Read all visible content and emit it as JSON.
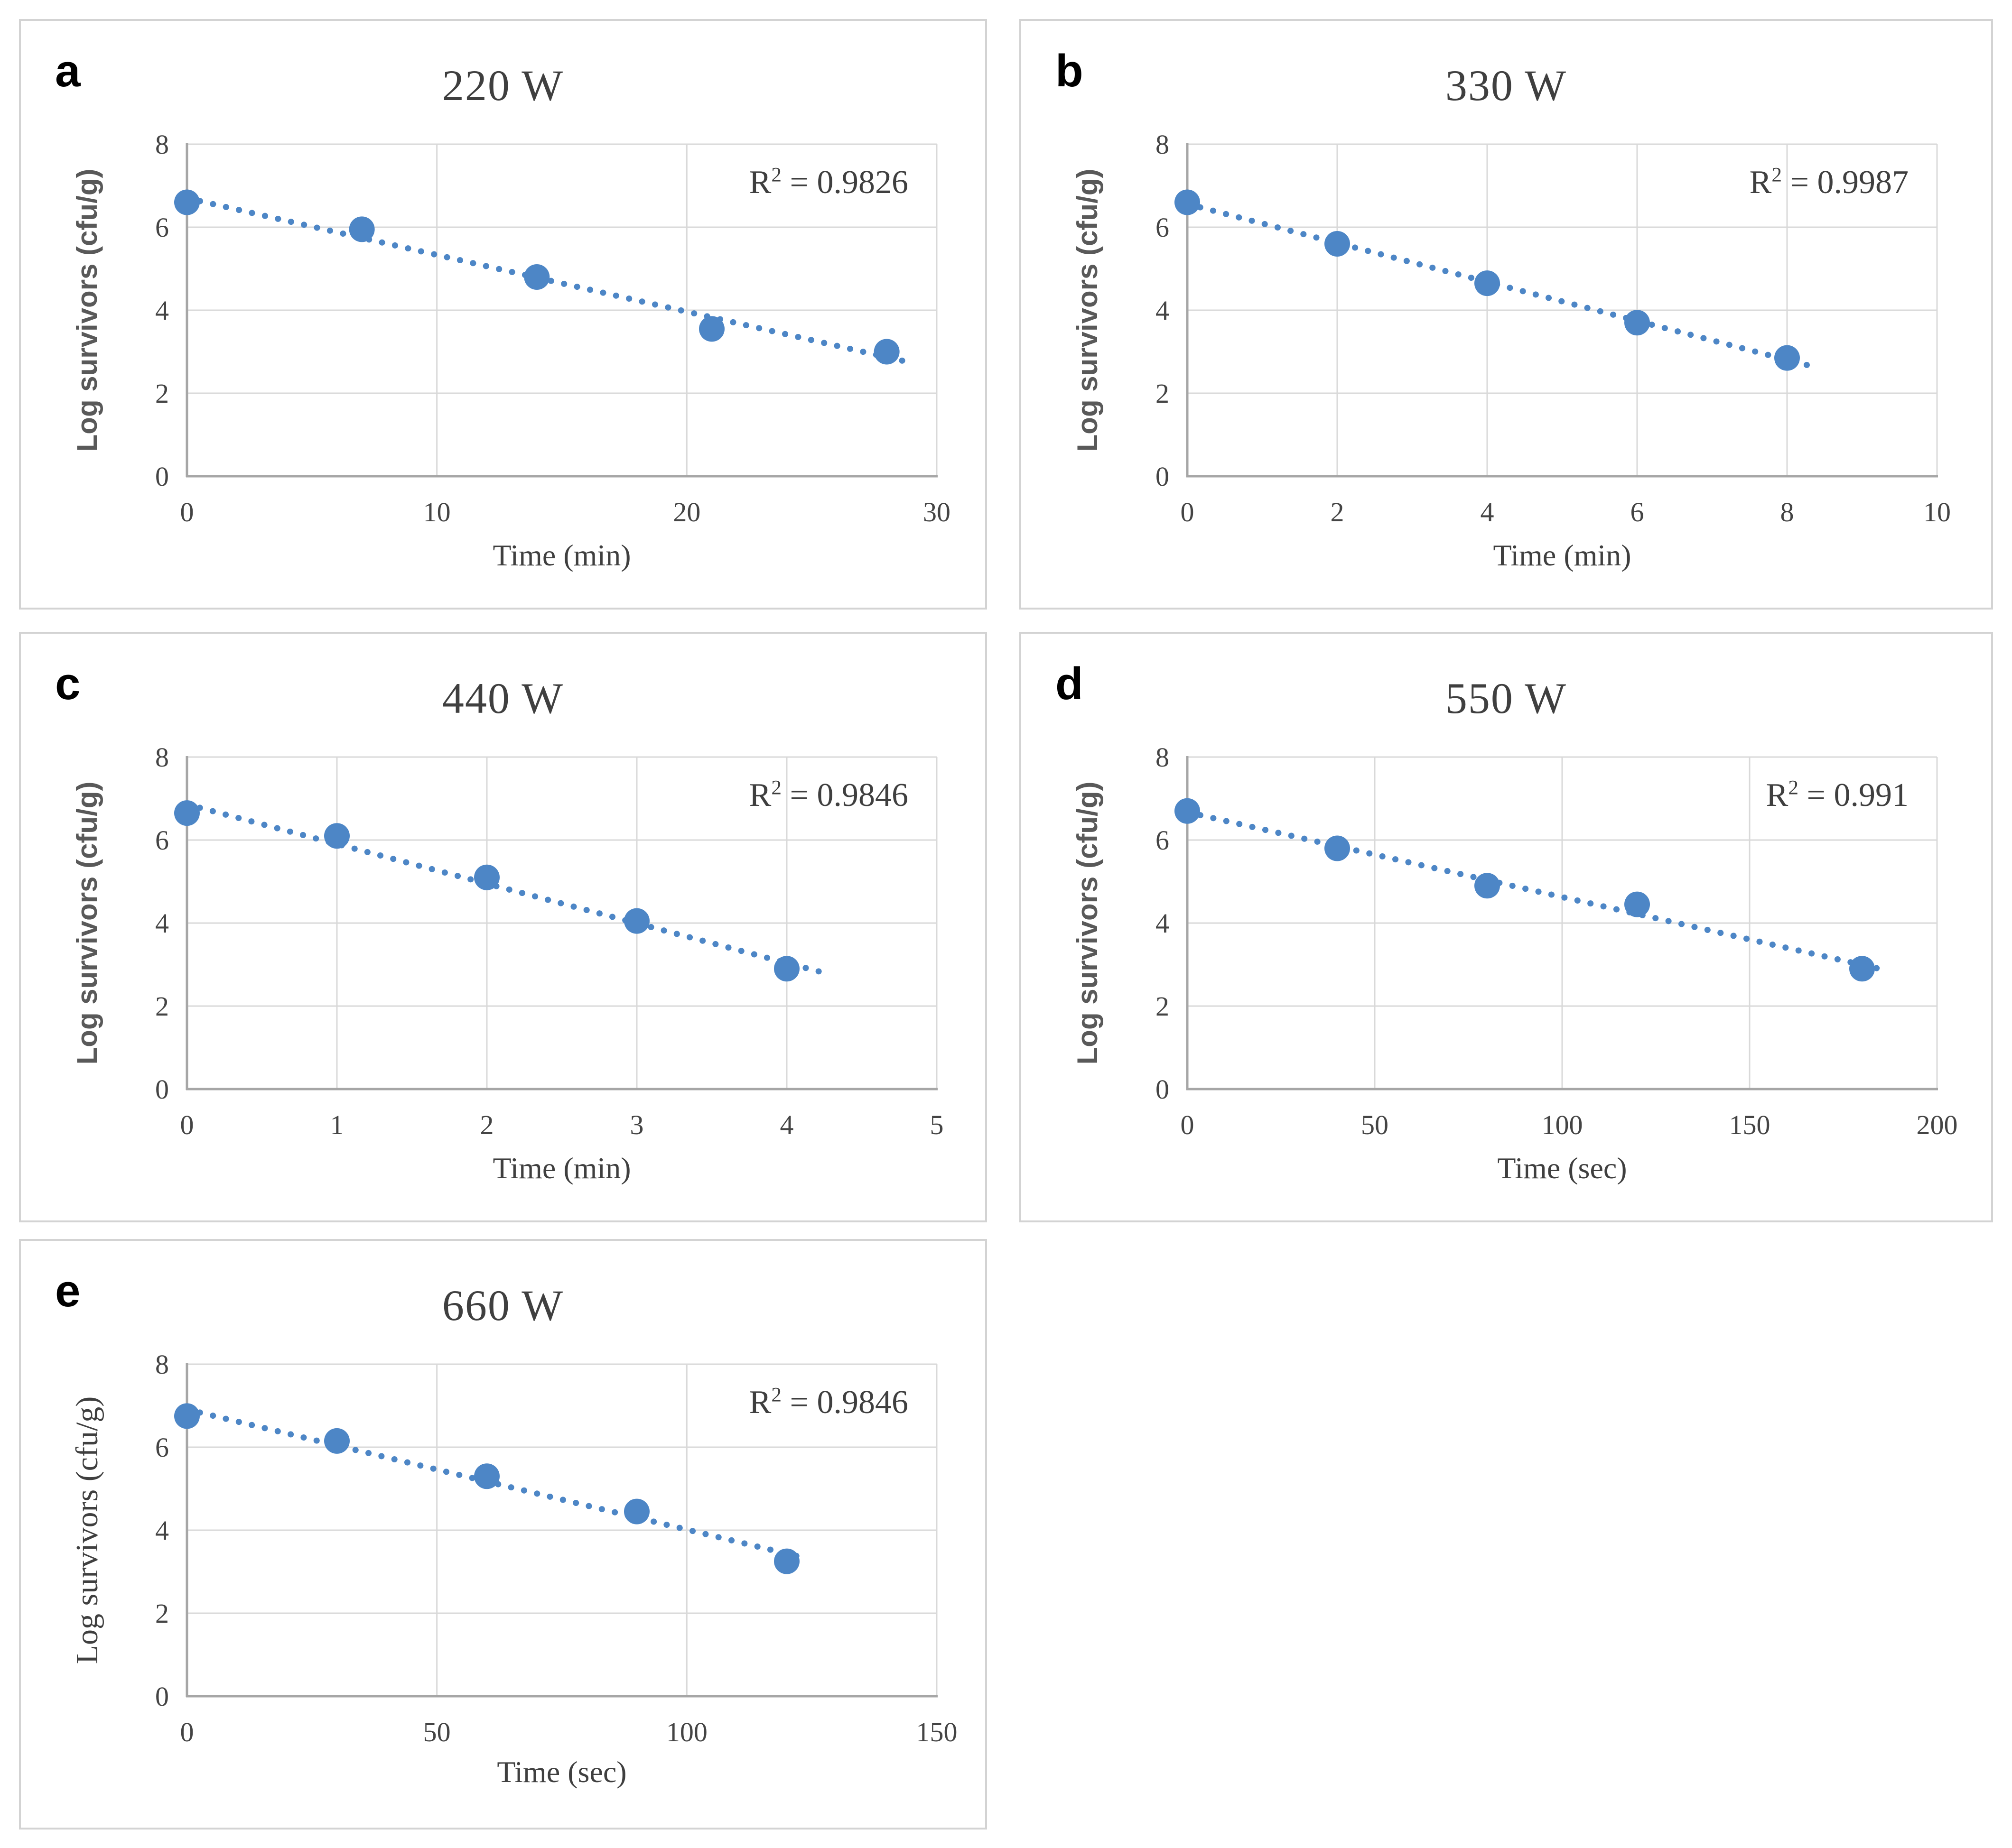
{
  "page": {
    "background": "#FFFFFF"
  },
  "palette": {
    "marker": "#4D86C6",
    "trendline": "#4D86C6",
    "gridline": "#D9D9D9",
    "axis_line": "#A6A6A6",
    "panel_border": "#D3D3D3",
    "title_text": "#3F3F3F",
    "tick_text": "#444444",
    "ylabel_gray": "#595959",
    "letter_text": "#000000"
  },
  "chart_data": [
    {
      "id": "a",
      "type": "scatter",
      "panel_letter": "a",
      "title": "220 W",
      "r2": {
        "base": "R",
        "sup": "2",
        "rest": " = 0.9826"
      },
      "xlabel": "Time (min)",
      "ylabel": "Log survivors (cfu/g)",
      "xlim": [
        0,
        30
      ],
      "ylim": [
        0,
        8
      ],
      "x_ticks": [
        0,
        10,
        20,
        30
      ],
      "y_ticks": [
        0,
        2,
        4,
        6,
        8
      ],
      "points": [
        [
          0,
          6.6
        ],
        [
          7,
          5.95
        ],
        [
          14,
          4.8
        ],
        [
          21,
          3.55
        ],
        [
          28,
          3.0
        ]
      ],
      "trendline": {
        "style": "dotted",
        "start": [
          0,
          6.7
        ],
        "end": [
          28.8,
          2.76
        ]
      },
      "grid": true,
      "legend": "none",
      "ylabel_style": "sans"
    },
    {
      "id": "b",
      "type": "scatter",
      "panel_letter": "b",
      "title": "330 W",
      "r2": {
        "base": "R",
        "sup": "2",
        "rest": " = 0.9987"
      },
      "xlabel": "Time (min)",
      "ylabel": "Log survivors (cfu/g)",
      "xlim": [
        0,
        10
      ],
      "ylim": [
        0,
        8
      ],
      "x_ticks": [
        0,
        2,
        4,
        6,
        8,
        10
      ],
      "y_ticks": [
        0,
        2,
        4,
        6,
        8
      ],
      "points": [
        [
          0,
          6.6
        ],
        [
          2,
          5.6
        ],
        [
          4,
          4.65
        ],
        [
          6,
          3.7
        ],
        [
          8,
          2.85
        ]
      ],
      "trendline": {
        "style": "dotted",
        "start": [
          0,
          6.56
        ],
        "end": [
          8.35,
          2.64
        ]
      },
      "grid": true,
      "legend": "none",
      "ylabel_style": "sans"
    },
    {
      "id": "c",
      "type": "scatter",
      "panel_letter": "c",
      "title": "440 W",
      "r2": {
        "base": "R",
        "sup": "2",
        "rest": " = 0.9846"
      },
      "xlabel": "Time (min)",
      "ylabel": "Log survivors (cfu/g)",
      "xlim": [
        0,
        5
      ],
      "ylim": [
        0,
        8
      ],
      "x_ticks": [
        0,
        1,
        2,
        3,
        4,
        5
      ],
      "y_ticks": [
        0,
        2,
        4,
        6,
        8
      ],
      "points": [
        [
          0,
          6.65
        ],
        [
          1,
          6.1
        ],
        [
          2,
          5.1
        ],
        [
          3,
          4.05
        ],
        [
          4,
          2.9
        ]
      ],
      "trendline": {
        "style": "dotted",
        "start": [
          0,
          6.86
        ],
        "end": [
          4.25,
          2.8
        ]
      },
      "grid": true,
      "legend": "none",
      "ylabel_style": "sans"
    },
    {
      "id": "d",
      "type": "scatter",
      "panel_letter": "d",
      "title": "550 W",
      "r2": {
        "base": "R",
        "sup": "2",
        "rest": " = 0.991"
      },
      "xlabel": "Time (sec)",
      "ylabel": "Log survivors (cfu/g)",
      "xlim": [
        0,
        200
      ],
      "ylim": [
        0,
        8
      ],
      "x_ticks": [
        0,
        50,
        100,
        150,
        200
      ],
      "y_ticks": [
        0,
        2,
        4,
        6,
        8
      ],
      "points": [
        [
          0,
          6.7
        ],
        [
          40,
          5.8
        ],
        [
          80,
          4.9
        ],
        [
          120,
          4.45
        ],
        [
          180,
          2.9
        ]
      ],
      "trendline": {
        "style": "dotted",
        "start": [
          0,
          6.67
        ],
        "end": [
          186,
          2.87
        ]
      },
      "grid": true,
      "legend": "none",
      "ylabel_style": "sans"
    },
    {
      "id": "e",
      "type": "scatter",
      "panel_letter": "e",
      "title": "660 W",
      "r2": {
        "base": "R",
        "sup": "2",
        "rest": " = 0.9846"
      },
      "xlabel": "Time (sec)",
      "ylabel": "Log survivors (cfu/g)",
      "xlim": [
        0,
        150
      ],
      "ylim": [
        0,
        8
      ],
      "x_ticks": [
        0,
        50,
        100,
        150
      ],
      "y_ticks": [
        0,
        2,
        4,
        6,
        8
      ],
      "points": [
        [
          0,
          6.75
        ],
        [
          30,
          6.15
        ],
        [
          60,
          5.3
        ],
        [
          90,
          4.45
        ],
        [
          120,
          3.25
        ]
      ],
      "trendline": {
        "style": "dotted",
        "start": [
          0,
          6.91
        ],
        "end": [
          124,
          3.32
        ]
      },
      "grid": true,
      "legend": "none",
      "ylabel_style": "serif"
    }
  ]
}
